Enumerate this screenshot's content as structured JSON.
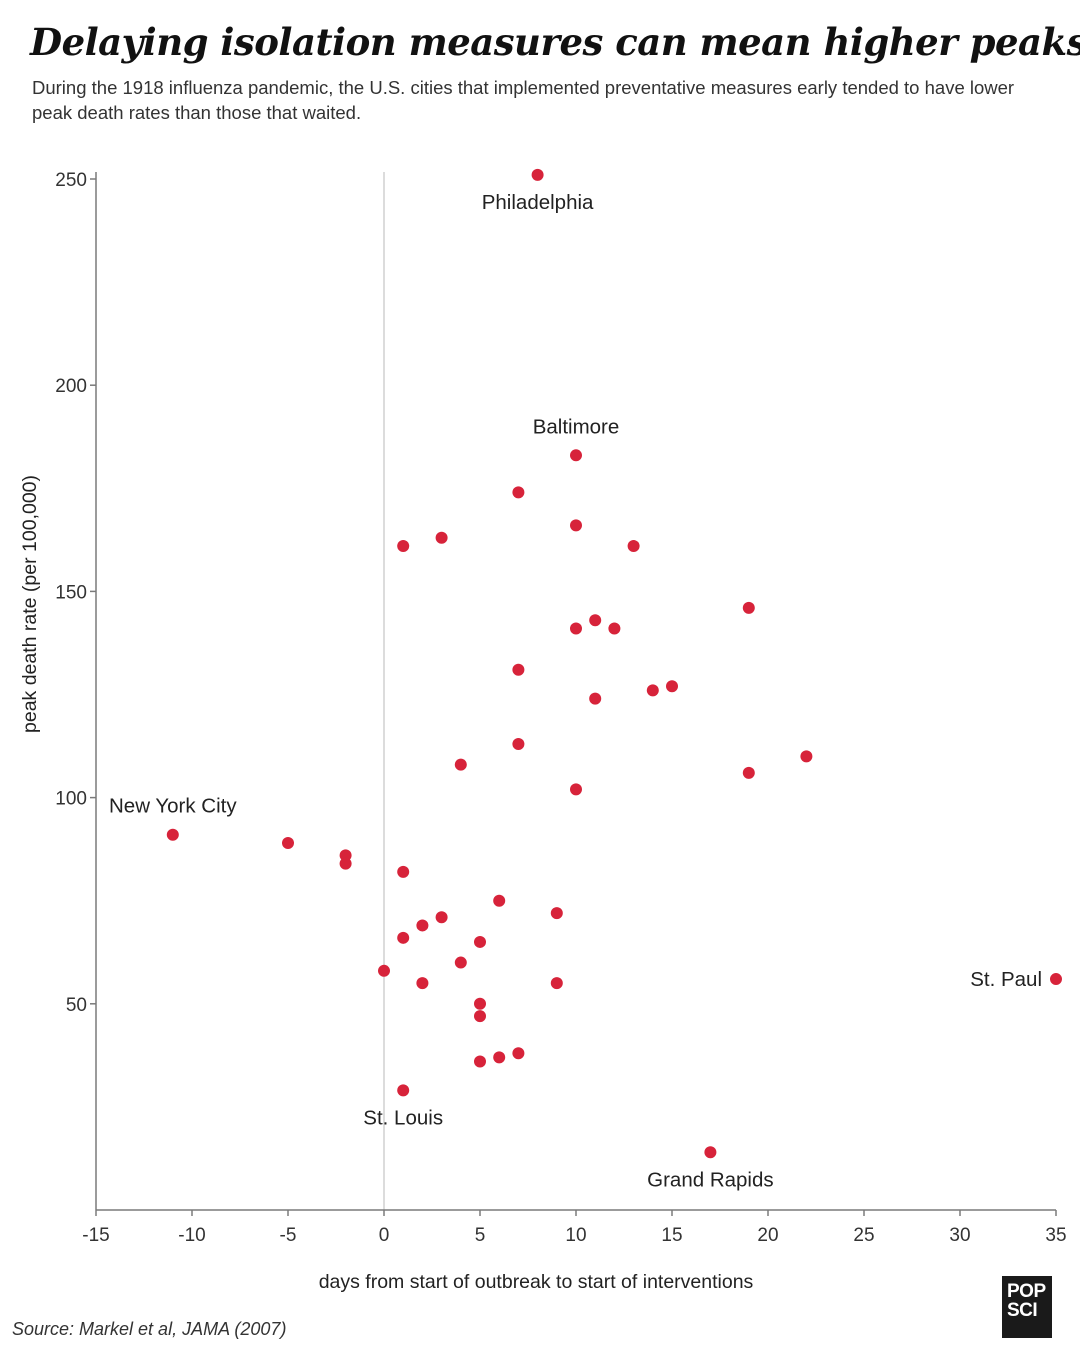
{
  "title": "Delaying isolation measures can mean higher peaks",
  "subtitle": "During the 1918 influenza pandemic, the U.S. cities that implemented preventative measures early tended to have lower peak death rates than those that waited.",
  "source": "Source: Markel et al, JAMA (2007)",
  "logo": {
    "line1": "POP",
    "line2": "SCI"
  },
  "colors": {
    "point": "#d7233a",
    "axis": "#7a7a7a",
    "zero_line": "#d0d0d0",
    "text": "#222222"
  },
  "chart_data": {
    "type": "scatter",
    "xlabel": "days from start of outbreak to start of interventions",
    "ylabel": "peak death rate (per 100,000)",
    "xlim": [
      -15,
      35
    ],
    "ylim": [
      0,
      250
    ],
    "xticks": [
      -15,
      -10,
      -5,
      0,
      5,
      10,
      15,
      20,
      25,
      30,
      35
    ],
    "yticks": [
      50,
      100,
      150,
      200,
      250
    ],
    "grid": false,
    "reference_line_x": 0,
    "points": [
      {
        "x": 8,
        "y": 251,
        "label": "Philadelphia",
        "label_pos": "below"
      },
      {
        "x": 10,
        "y": 183,
        "label": "Baltimore",
        "label_pos": "above"
      },
      {
        "x": 7,
        "y": 174
      },
      {
        "x": 10,
        "y": 166
      },
      {
        "x": 1,
        "y": 161
      },
      {
        "x": 3,
        "y": 163
      },
      {
        "x": 13,
        "y": 161
      },
      {
        "x": 19,
        "y": 146
      },
      {
        "x": 11,
        "y": 143
      },
      {
        "x": 12,
        "y": 141
      },
      {
        "x": 10,
        "y": 141
      },
      {
        "x": 7,
        "y": 131
      },
      {
        "x": 14,
        "y": 126
      },
      {
        "x": 15,
        "y": 127
      },
      {
        "x": 11,
        "y": 124
      },
      {
        "x": 7,
        "y": 113
      },
      {
        "x": 4,
        "y": 108
      },
      {
        "x": 22,
        "y": 110
      },
      {
        "x": 19,
        "y": 106
      },
      {
        "x": 10,
        "y": 102
      },
      {
        "x": -11,
        "y": 91,
        "label": "New York City",
        "label_pos": "above"
      },
      {
        "x": -5,
        "y": 89
      },
      {
        "x": -2,
        "y": 86
      },
      {
        "x": -2,
        "y": 84
      },
      {
        "x": 1,
        "y": 82
      },
      {
        "x": 6,
        "y": 75
      },
      {
        "x": 9,
        "y": 72
      },
      {
        "x": 3,
        "y": 71
      },
      {
        "x": 2,
        "y": 69
      },
      {
        "x": 1,
        "y": 66
      },
      {
        "x": 5,
        "y": 65
      },
      {
        "x": 4,
        "y": 60
      },
      {
        "x": 0,
        "y": 58
      },
      {
        "x": 2,
        "y": 55
      },
      {
        "x": 9,
        "y": 55
      },
      {
        "x": 35,
        "y": 56,
        "label": "St. Paul",
        "label_pos": "left"
      },
      {
        "x": 5,
        "y": 50
      },
      {
        "x": 5,
        "y": 47
      },
      {
        "x": 7,
        "y": 38
      },
      {
        "x": 6,
        "y": 37
      },
      {
        "x": 5,
        "y": 36
      },
      {
        "x": 1,
        "y": 29,
        "label": "St. Louis",
        "label_pos": "below"
      },
      {
        "x": 17,
        "y": 14,
        "label": "Grand Rapids",
        "label_pos": "below"
      }
    ]
  }
}
